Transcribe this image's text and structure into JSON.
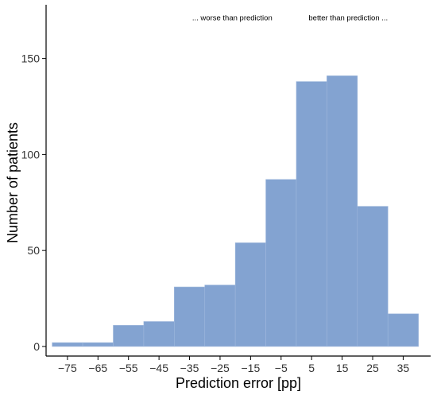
{
  "chart_data": {
    "type": "bar",
    "bin_edges": [
      -80,
      -70,
      -60,
      -50,
      -40,
      -30,
      -20,
      -10,
      0,
      10,
      20,
      30,
      40
    ],
    "values": [
      2,
      2,
      11,
      13,
      31,
      32,
      54,
      87,
      138,
      141,
      73,
      17
    ],
    "xticks": [
      -75,
      -65,
      -55,
      -45,
      -35,
      -25,
      -15,
      -5,
      5,
      15,
      25,
      35
    ],
    "xtick_labels": [
      "−75",
      "−65",
      "−55",
      "−45",
      "−35",
      "−25",
      "−15",
      "−5",
      "5",
      "15",
      "25",
      "35"
    ],
    "yticks": [
      0,
      50,
      100,
      150
    ],
    "ytick_labels": [
      "0",
      "50",
      "100",
      "150"
    ],
    "xlim": [
      -82,
      44
    ],
    "ylim": [
      -5,
      178
    ],
    "xlabel": "Prediction error [pp]",
    "ylabel": "Number of patients",
    "annotations": [
      {
        "text": "... worse than prediction",
        "x": -21,
        "y": 170
      },
      {
        "text": "better than prediction ...",
        "x": 17,
        "y": 170
      }
    ],
    "bar_color": "#83a3d1",
    "grid": false
  }
}
